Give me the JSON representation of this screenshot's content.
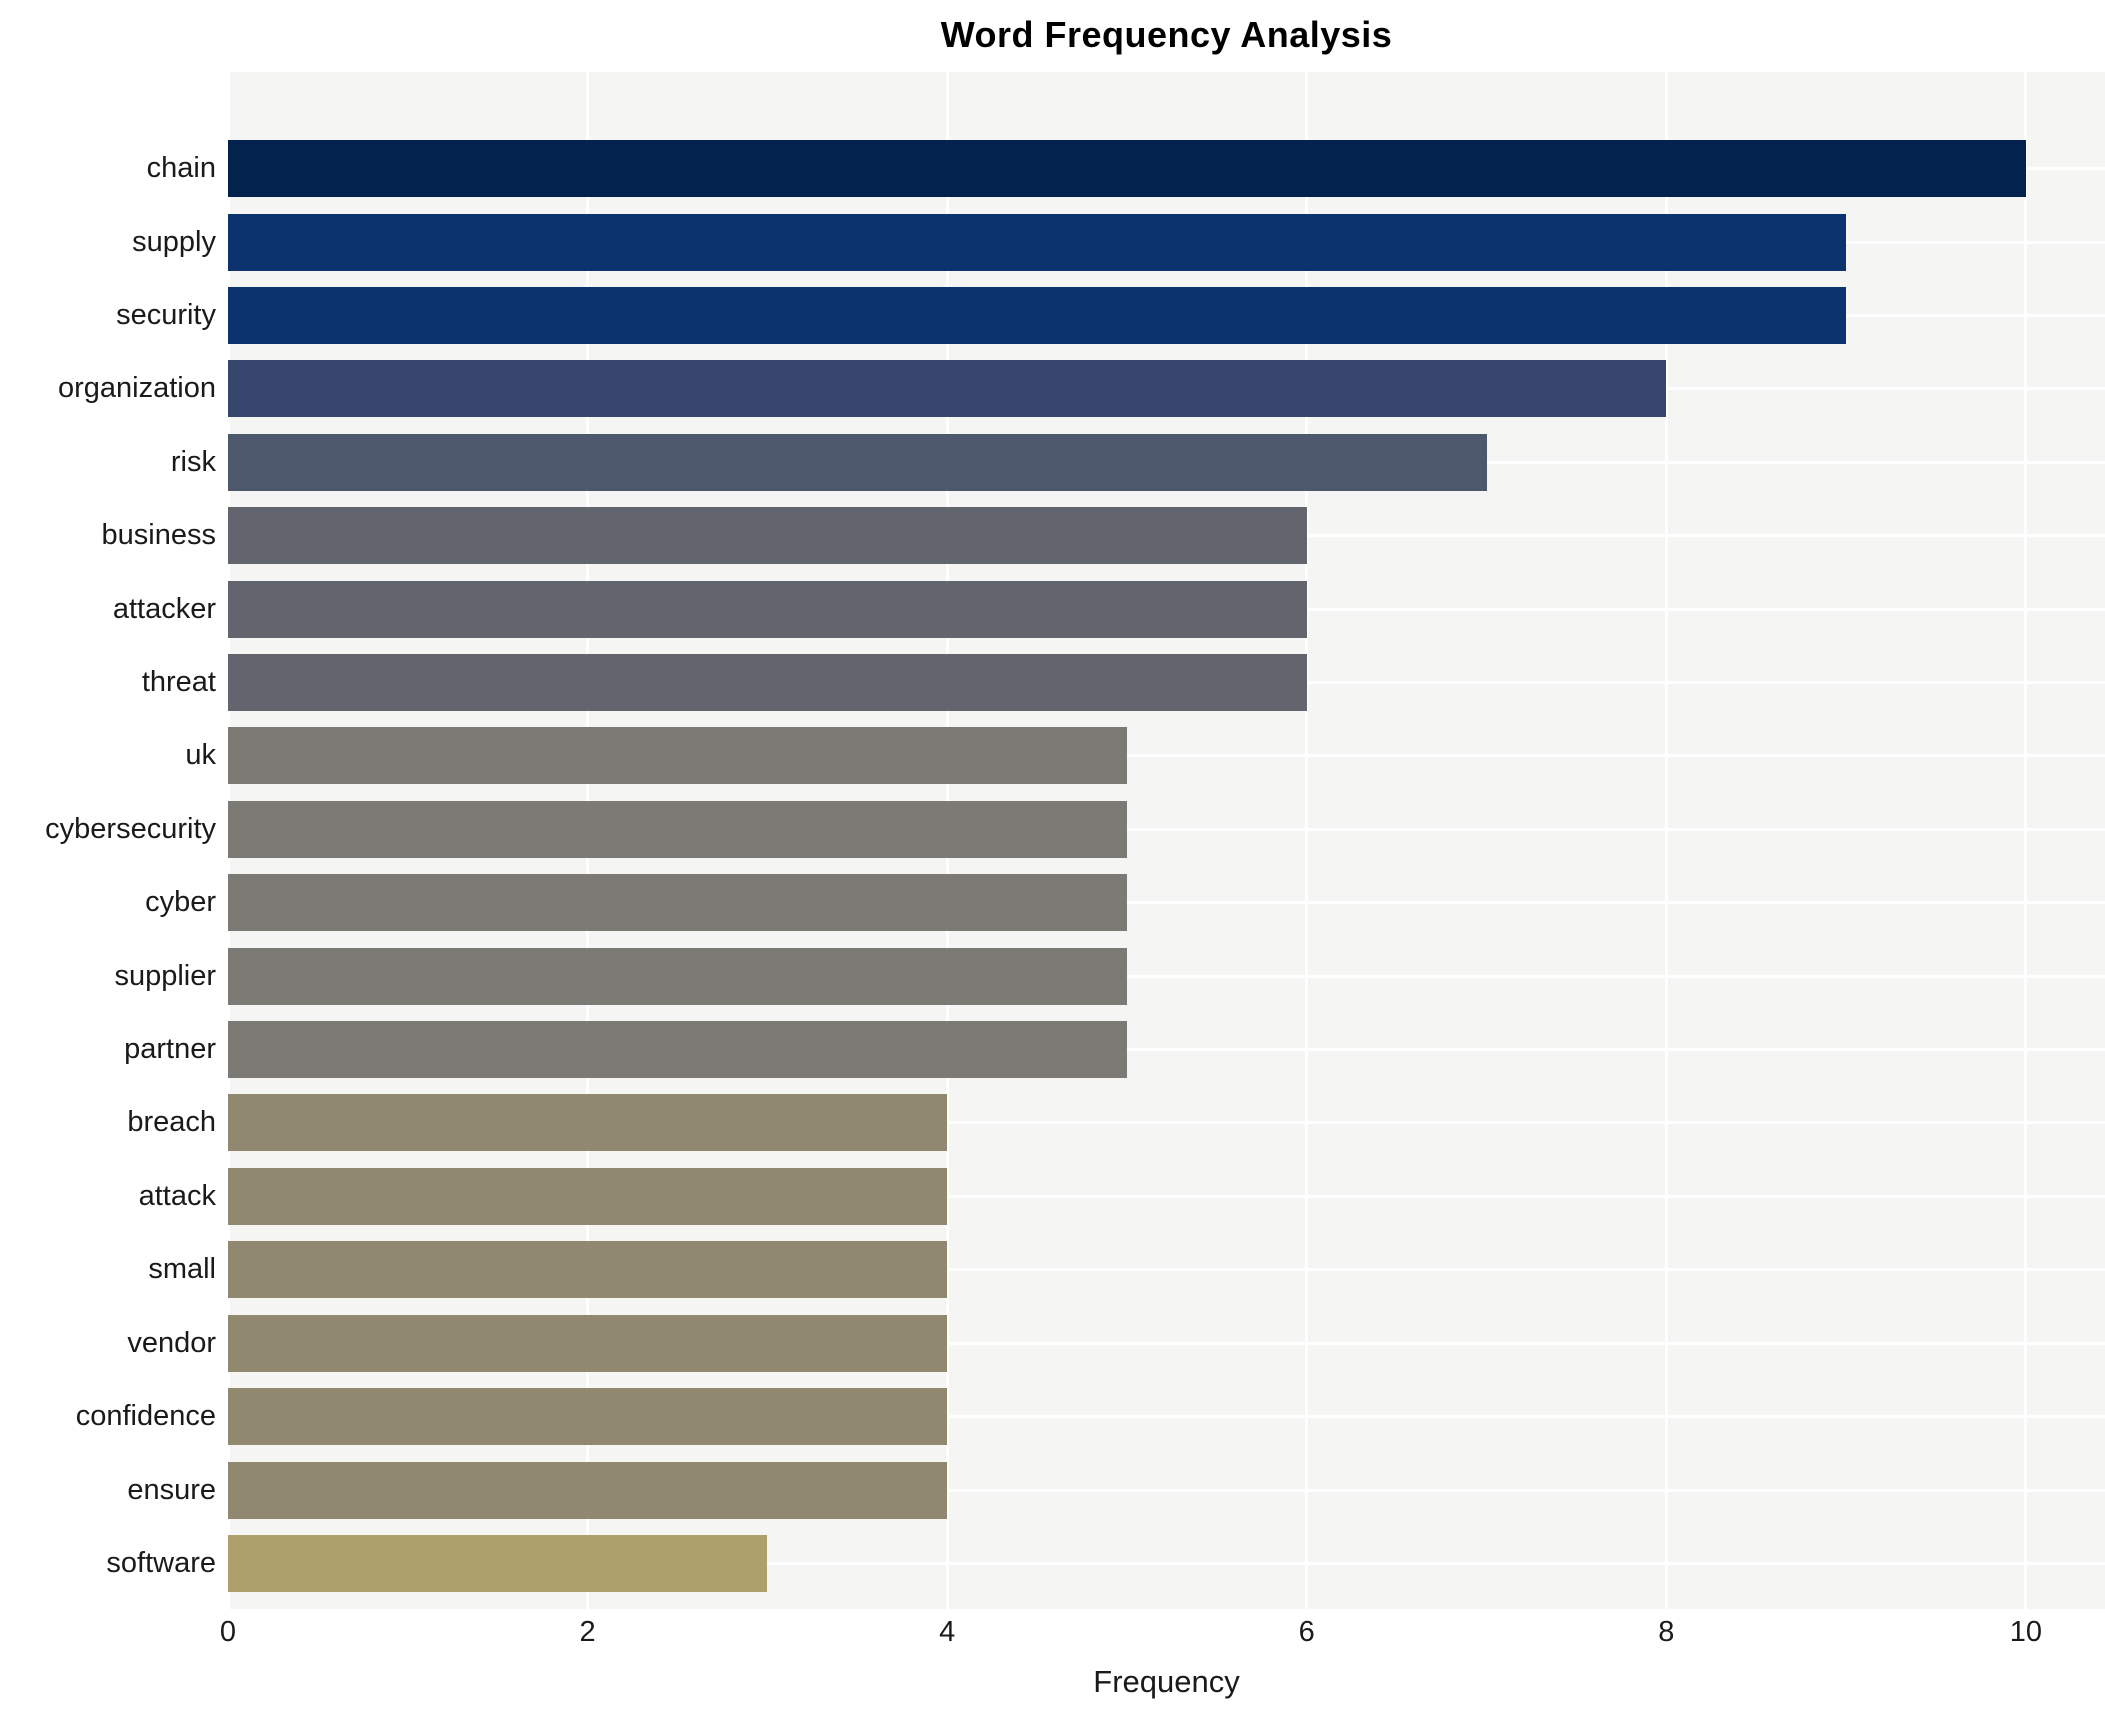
{
  "chart_data": {
    "type": "bar",
    "orientation": "horizontal",
    "title": "Word Frequency Analysis",
    "xlabel": "Frequency",
    "ylabel": "",
    "categories": [
      "chain",
      "supply",
      "security",
      "organization",
      "risk",
      "business",
      "attacker",
      "threat",
      "uk",
      "cybersecurity",
      "cyber",
      "supplier",
      "partner",
      "breach",
      "attack",
      "small",
      "vendor",
      "confidence",
      "ensure",
      "software"
    ],
    "values": [
      10,
      9,
      9,
      8,
      7,
      6,
      6,
      6,
      5,
      5,
      5,
      5,
      5,
      4,
      4,
      4,
      4,
      4,
      4,
      3
    ],
    "bar_colors": [
      "#03234e",
      "#0d336e",
      "#0d336e",
      "#37466d",
      "#4e586d",
      "#62656e",
      "#62656e",
      "#62656e",
      "#7b7a74",
      "#7b7a74",
      "#7b7a74",
      "#7b7a74",
      "#7b7a74",
      "#90896f",
      "#90896f",
      "#90896f",
      "#90896f",
      "#90896f",
      "#90896f",
      "#ada06b"
    ],
    "xlim": [
      0,
      10.44
    ],
    "xticks": [
      0,
      2,
      4,
      6,
      8,
      10
    ],
    "grid": true,
    "legend": "none",
    "plot_background": "#f5f5f4",
    "grid_color": "#ffffff",
    "text_color": "#1a1a1a"
  }
}
